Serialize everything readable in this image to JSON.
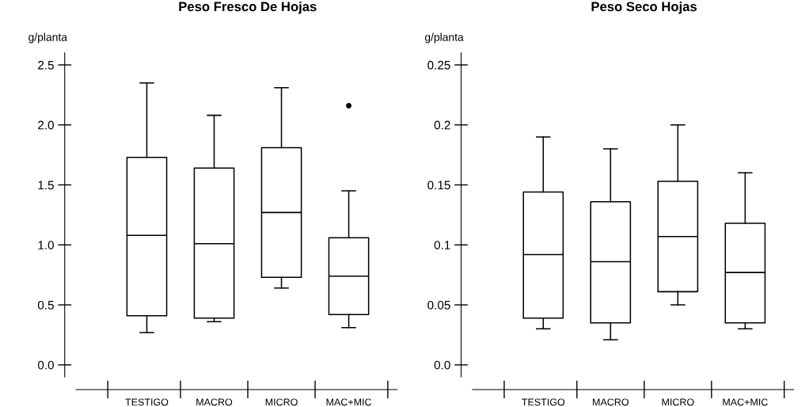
{
  "chart_data": [
    {
      "type": "box",
      "title": "Peso Fresco De Hojas",
      "ylabel": "g/planta",
      "categories": [
        "TESTIGO",
        "MACRO",
        "MICRO",
        "MAC+MIC"
      ],
      "ylim": [
        -0.1,
        2.6
      ],
      "yticks": [
        {
          "value": 0,
          "label": "0.0"
        },
        {
          "value": 0.5,
          "label": "0.5"
        },
        {
          "value": 1,
          "label": "1.0"
        },
        {
          "value": 1.5,
          "label": "1.5"
        },
        {
          "value": 2,
          "label": "2.0"
        },
        {
          "value": 2.5,
          "label": "2.5"
        }
      ],
      "grid": false,
      "boxes": [
        {
          "low": 0.27,
          "q1": 0.41,
          "median": 1.08,
          "q3": 1.73,
          "high": 2.35
        },
        {
          "low": 0.36,
          "q1": 0.39,
          "median": 1.01,
          "q3": 1.64,
          "high": 2.08
        },
        {
          "low": 0.64,
          "q1": 0.73,
          "median": 1.27,
          "q3": 1.81,
          "high": 2.31
        },
        {
          "low": 0.31,
          "q1": 0.42,
          "median": 0.74,
          "q3": 1.06,
          "high": 1.45,
          "outliers": [
            2.16
          ]
        }
      ]
    },
    {
      "type": "box",
      "title": "Peso Seco Hojas",
      "ylabel": "g/planta",
      "categories": [
        "TESTIGO",
        "MACRO",
        "MICRO",
        "MAC+MIC"
      ],
      "ylim": [
        -0.01,
        0.26
      ],
      "yticks": [
        {
          "value": 0,
          "label": "0.0"
        },
        0.05,
        0.1,
        0.15,
        0.2,
        0.25
      ],
      "grid": false,
      "boxes": [
        {
          "low": 0.03,
          "q1": 0.039,
          "median": 0.092,
          "q3": 0.144,
          "high": 0.19
        },
        {
          "low": 0.021,
          "q1": 0.035,
          "median": 0.086,
          "q3": 0.136,
          "high": 0.18
        },
        {
          "low": 0.05,
          "q1": 0.061,
          "median": 0.107,
          "q3": 0.153,
          "high": 0.2
        },
        {
          "low": 0.03,
          "q1": 0.035,
          "median": 0.077,
          "q3": 0.118,
          "high": 0.16
        }
      ]
    }
  ]
}
